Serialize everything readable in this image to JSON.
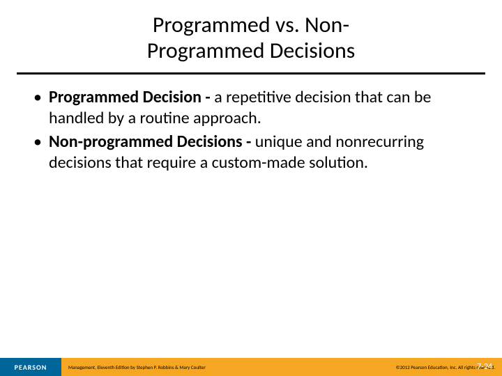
{
  "title_line1": "Programmed vs. Non-",
  "title_line2": "Programmed Decisions",
  "bullets": [
    {
      "term": "Programmed Decision - ",
      "desc": "a repetitive decision that can be handled by a routine approach."
    },
    {
      "term": "Non-programmed Decisions - ",
      "desc": "unique and nonrecurring decisions that require a custom-made solution."
    }
  ],
  "footer": {
    "logo_text": "PEARSON",
    "left": "Management, Eleventh Edition by Stephen P. Robbins & Mary Coulter",
    "right": "©2012 Pearson Education, Inc. All rights reserved.",
    "page": "7-24"
  },
  "colors": {
    "logo_bg": "#006699",
    "bar_bg": "#f5a623",
    "rule": "#000000",
    "text": "#000000",
    "page_num": "#ffffff"
  }
}
